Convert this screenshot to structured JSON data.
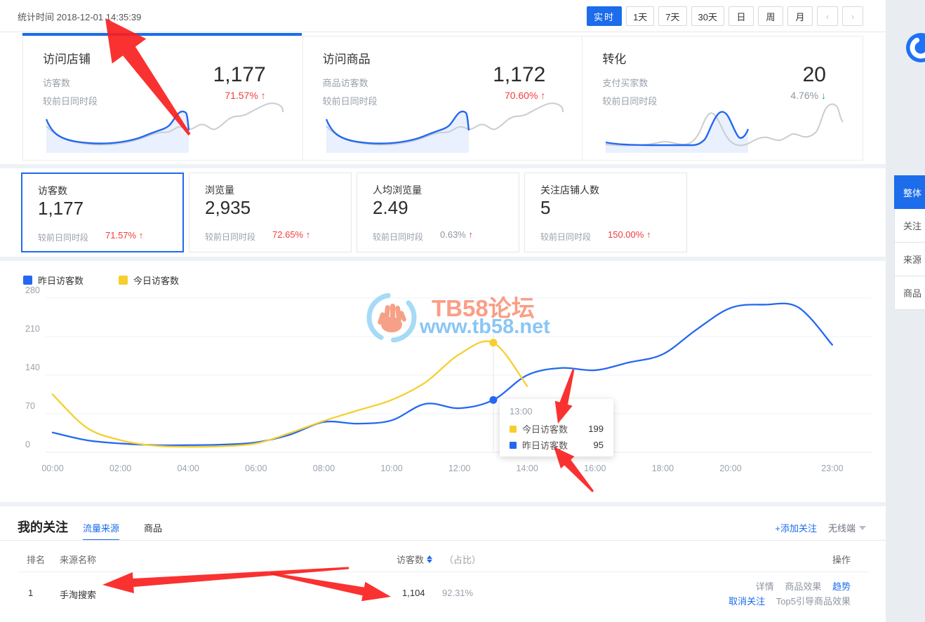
{
  "colors": {
    "primary": "#1c6ceb",
    "red": "#f23c3c",
    "green": "#21ac4e",
    "yellow": "#f6cf2f",
    "blue_line": "#2468f2",
    "annotation_red": "#fa2020"
  },
  "topbar": {
    "stat_time_label": "统计时间",
    "stat_time": "2018-12-01 14:35:39",
    "range_buttons": [
      "实时",
      "1天",
      "7天",
      "30天",
      "日",
      "周",
      "月"
    ],
    "active_range": "实时",
    "prev_icon": "‹",
    "next_icon": "›"
  },
  "summary_cards": [
    {
      "title": "访问店铺",
      "metric_label": "访客数",
      "compare_label": "较前日同时段",
      "value": "1,177",
      "change": "71.57%",
      "arrow": "↑"
    },
    {
      "title": "访问商品",
      "metric_label": "商品访客数",
      "compare_label": "较前日同时段",
      "value": "1,172",
      "change": "70.60%",
      "arrow": "↑"
    },
    {
      "title": "转化",
      "metric_label": "支付买家数",
      "compare_label": "较前日同时段",
      "value": "20",
      "change": "4.76%",
      "arrow": "↓"
    }
  ],
  "metric_tabs": [
    {
      "label": "访客数",
      "value": "1,177",
      "compare_label": "较前日同时段",
      "change": "71.57%",
      "arrow": "↑",
      "selected": true
    },
    {
      "label": "浏览量",
      "value": "2,935",
      "compare_label": "较前日同时段",
      "change": "72.65%",
      "arrow": "↑",
      "selected": false
    },
    {
      "label": "人均浏览量",
      "value": "2.49",
      "compare_label": "较前日同时段",
      "change": "0.63%",
      "arrow": "↑",
      "selected": false
    },
    {
      "label": "关注店铺人数",
      "value": "5",
      "compare_label": "较前日同时段",
      "change": "150.00%",
      "arrow": "↑",
      "selected": false
    }
  ],
  "chart_data": {
    "type": "line",
    "ylim": [
      0,
      280
    ],
    "yticks": [
      0,
      70,
      140,
      210,
      280
    ],
    "x_hours": 24,
    "x_tick_labels": [
      {
        "t": "00:00",
        "h": 0
      },
      {
        "t": "02:00",
        "h": 2
      },
      {
        "t": "04:00",
        "h": 4
      },
      {
        "t": "06:00",
        "h": 6
      },
      {
        "t": "08:00",
        "h": 8
      },
      {
        "t": "10:00",
        "h": 10
      },
      {
        "t": "12:00",
        "h": 12
      },
      {
        "t": "14:00",
        "h": 14
      },
      {
        "t": "16:00",
        "h": 16
      },
      {
        "t": "18:00",
        "h": 18
      },
      {
        "t": "20:00",
        "h": 20
      },
      {
        "t": "23:00",
        "h": 23
      }
    ],
    "series": [
      {
        "name": "昨日访客数",
        "color": "#2468f2",
        "values": [
          36,
          22,
          16,
          13,
          13,
          14,
          18,
          32,
          55,
          52,
          58,
          88,
          80,
          95,
          140,
          153,
          149,
          163,
          178,
          223,
          262,
          268,
          263,
          195
        ]
      },
      {
        "name": "今日访客数",
        "color": "#f6cf2f",
        "values": [
          105,
          45,
          22,
          12,
          10,
          11,
          16,
          35,
          57,
          76,
          95,
          127,
          178,
          199,
          120
        ]
      }
    ],
    "highlight": {
      "hour": 13,
      "label": "13:00",
      "today": 199,
      "yesterday": 95
    },
    "legend_position": "top-left",
    "grid": true
  },
  "tooltip": {
    "time": "13:00",
    "rows": [
      {
        "label": "今日访客数",
        "value": "199",
        "color": "#f6cf2f"
      },
      {
        "label": "昨日访客数",
        "value": "95",
        "color": "#2468f2"
      }
    ]
  },
  "watermark": {
    "line1": "TB58论坛",
    "line2": "www.tb58.net"
  },
  "follow_section": {
    "title": "我的关注",
    "tabs": [
      {
        "label": "流量来源",
        "active": true
      },
      {
        "label": "商品",
        "active": false
      }
    ],
    "add_icon": "+",
    "add_label": "添加关注",
    "device_filter": "无线端",
    "table": {
      "headers": {
        "rank": "排名",
        "source": "来源名称",
        "visitors": "访客数",
        "ratio": "（占比）",
        "ops": "操作"
      },
      "rows": [
        {
          "rank": "1",
          "source": "手淘搜索",
          "visitors": "1,104",
          "ratio": "92.31%",
          "ops_line1": [
            {
              "label": "详情",
              "blue": false
            },
            {
              "label": "商品效果",
              "blue": false
            },
            {
              "label": "趋势",
              "blue": true
            }
          ],
          "ops_line2": [
            {
              "label": "取消关注",
              "blue": true
            },
            {
              "label": "Top5引导商品效果",
              "blue": false
            }
          ]
        }
      ]
    }
  },
  "right_rail": {
    "items": [
      {
        "label": "整体",
        "active": true
      },
      {
        "label": "关注",
        "active": false
      },
      {
        "label": "来源",
        "active": false
      },
      {
        "label": "商品",
        "active": false
      }
    ]
  },
  "annotations": {
    "arrows": [
      {
        "tip": [
          150,
          26
        ],
        "tail": [
          270,
          192
        ],
        "hl": 58,
        "hw": 30,
        "bw": 11,
        "tw": 2
      },
      {
        "tip": [
          795,
          604
        ],
        "tail": [
          817,
          527
        ],
        "hl": 30,
        "hw": 13,
        "bw": 6,
        "tw": 1.5
      },
      {
        "tip": [
          789,
          637
        ],
        "tail": [
          845,
          701
        ],
        "hl": 30,
        "hw": 13,
        "bw": 6,
        "tw": 1.5
      },
      {
        "tip": [
          146,
          834
        ],
        "tail": [
          497,
          810
        ],
        "hl": 44,
        "hw": 15,
        "bw": 6,
        "tw": 1.5
      },
      {
        "tip": [
          557,
          851
        ],
        "tail": [
          386,
          818
        ],
        "hl": 40,
        "hw": 14,
        "bw": 6,
        "tw": 1.5
      }
    ]
  }
}
